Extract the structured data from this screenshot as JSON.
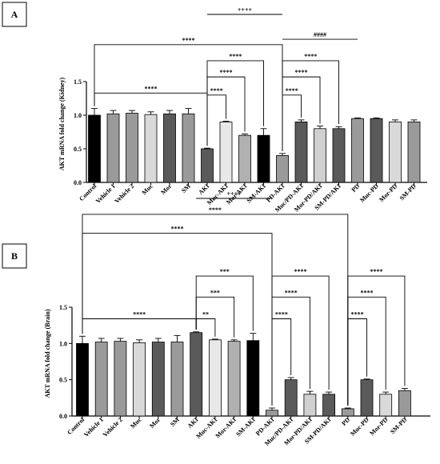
{
  "panels": [
    {
      "id": "A",
      "label": "A"
    },
    {
      "id": "B",
      "label": "B"
    }
  ],
  "chart_data": [
    {
      "panel": "A",
      "type": "bar",
      "title": "",
      "xlabel": "",
      "ylabel": "AKT mRNA fold change (Kidney)",
      "ylim": [
        0,
        1.5
      ],
      "yticks": [
        "0.0",
        "0.5",
        "1.0",
        "1.5"
      ],
      "categories": [
        "Control",
        "Vehicle 1",
        "Vehicle 2",
        "Muc",
        "Mor",
        "SM",
        "AKI",
        "Muc-AKI",
        "Mor-AKI",
        "SM-AKI",
        "PD-AKI",
        "Muc/PD-AKI",
        "Mor-PD/AKI",
        "SM-PD/AKI",
        "PD",
        "Muc-PD",
        "Mor-PD",
        "SM-PD"
      ],
      "values": [
        1.0,
        1.02,
        1.03,
        1.01,
        1.02,
        1.02,
        0.5,
        0.9,
        0.7,
        0.7,
        0.4,
        0.9,
        0.8,
        0.8,
        0.95,
        0.95,
        0.9,
        0.9
      ],
      "errors": [
        0.1,
        0.05,
        0.04,
        0.04,
        0.05,
        0.08,
        0.01,
        0.01,
        0.02,
        0.1,
        0.03,
        0.03,
        0.04,
        0.03,
        0.01,
        0.01,
        0.03,
        0.03
      ],
      "colors": [
        "#000000",
        "#9a9a9a",
        "#9a9a9a",
        "#d9d9d9",
        "#5a5a5a",
        "#9a9a9a",
        "#5a5a5a",
        "#e8e8e8",
        "#b0b0b0",
        "#000000",
        "#9a9a9a",
        "#5a5a5a",
        "#d0d0d0",
        "#5a5a5a",
        "#9a9a9a",
        "#5a5a5a",
        "#d9d9d9",
        "#9a9a9a"
      ],
      "annotations": [
        {
          "from": 0,
          "to": 6,
          "level": 1.33,
          "label": "****"
        },
        {
          "from": 0,
          "to": 10,
          "level": 2.05,
          "label": "****"
        },
        {
          "from": 6,
          "to": 10,
          "level": 2.5,
          "label": "++++",
          "style": "plain"
        },
        {
          "from": 6,
          "to": 7,
          "level": 1.3,
          "label": "****"
        },
        {
          "from": 6,
          "to": 8,
          "level": 1.57,
          "label": "****"
        },
        {
          "from": 6,
          "to": 9,
          "level": 1.81,
          "label": "****"
        },
        {
          "from": 10,
          "to": 14,
          "level": 2.13,
          "label": "####",
          "style": "plain"
        },
        {
          "from": 10,
          "to": 11,
          "level": 1.3,
          "label": "****"
        },
        {
          "from": 10,
          "to": 12,
          "level": 1.57,
          "label": "****"
        },
        {
          "from": 10,
          "to": 13,
          "level": 1.81,
          "label": "****"
        }
      ]
    },
    {
      "panel": "B",
      "type": "bar",
      "title": "",
      "xlabel": "",
      "ylabel": "AKT mRNA fold change (Brain)",
      "ylim": [
        0,
        1.5
      ],
      "yticks": [
        "0.0",
        "0.5",
        "1.0",
        "1.5"
      ],
      "categories": [
        "Control",
        "Vehicle 1",
        "Vehicle 2",
        "Muc",
        "Mor",
        "SM",
        "AKI",
        "Muc-AKI",
        "Mor-AKI",
        "SM-AKI",
        "PD-AKI",
        "Muc/PD-AKI",
        "Mor-PD/AKI",
        "SM-PD/AKI",
        "PD",
        "Muc-PD",
        "Mor-PD",
        "SM-PD"
      ],
      "values": [
        1.0,
        1.02,
        1.03,
        1.01,
        1.02,
        1.02,
        1.15,
        1.05,
        1.03,
        1.04,
        0.08,
        0.5,
        0.3,
        0.3,
        0.1,
        0.5,
        0.3,
        0.35
      ],
      "errors": [
        0.1,
        0.05,
        0.04,
        0.04,
        0.05,
        0.09,
        0.01,
        0.01,
        0.02,
        0.1,
        0.03,
        0.03,
        0.04,
        0.03,
        0.01,
        0.01,
        0.03,
        0.03
      ],
      "colors": [
        "#000000",
        "#9a9a9a",
        "#9a9a9a",
        "#d9d9d9",
        "#5a5a5a",
        "#9a9a9a",
        "#5a5a5a",
        "#e8e8e8",
        "#b0b0b0",
        "#000000",
        "#9a9a9a",
        "#5a5a5a",
        "#d0d0d0",
        "#5a5a5a",
        "#9a9a9a",
        "#5a5a5a",
        "#d9d9d9",
        "#9a9a9a"
      ],
      "annotations": [
        {
          "from": 0,
          "to": 6,
          "level": 1.34,
          "label": "****"
        },
        {
          "from": 0,
          "to": 10,
          "level": 2.52,
          "label": "****"
        },
        {
          "from": 0,
          "to": 14,
          "level": 2.78,
          "label": "****"
        },
        {
          "from": 6,
          "to": 10,
          "level": 3.0,
          "label": "++++",
          "style": "plain"
        },
        {
          "from": 6,
          "to": 7,
          "level": 1.34,
          "label": "**"
        },
        {
          "from": 6,
          "to": 8,
          "level": 1.64,
          "label": "***"
        },
        {
          "from": 6,
          "to": 9,
          "level": 1.93,
          "label": "***"
        },
        {
          "from": 10,
          "to": 11,
          "level": 1.34,
          "label": "****"
        },
        {
          "from": 10,
          "to": 12,
          "level": 1.64,
          "label": "****"
        },
        {
          "from": 10,
          "to": 13,
          "level": 1.93,
          "label": "****"
        },
        {
          "from": 14,
          "to": 15,
          "level": 1.34,
          "label": "****"
        },
        {
          "from": 14,
          "to": 16,
          "level": 1.64,
          "label": "****"
        },
        {
          "from": 14,
          "to": 17,
          "level": 1.93,
          "label": "****"
        }
      ]
    }
  ]
}
